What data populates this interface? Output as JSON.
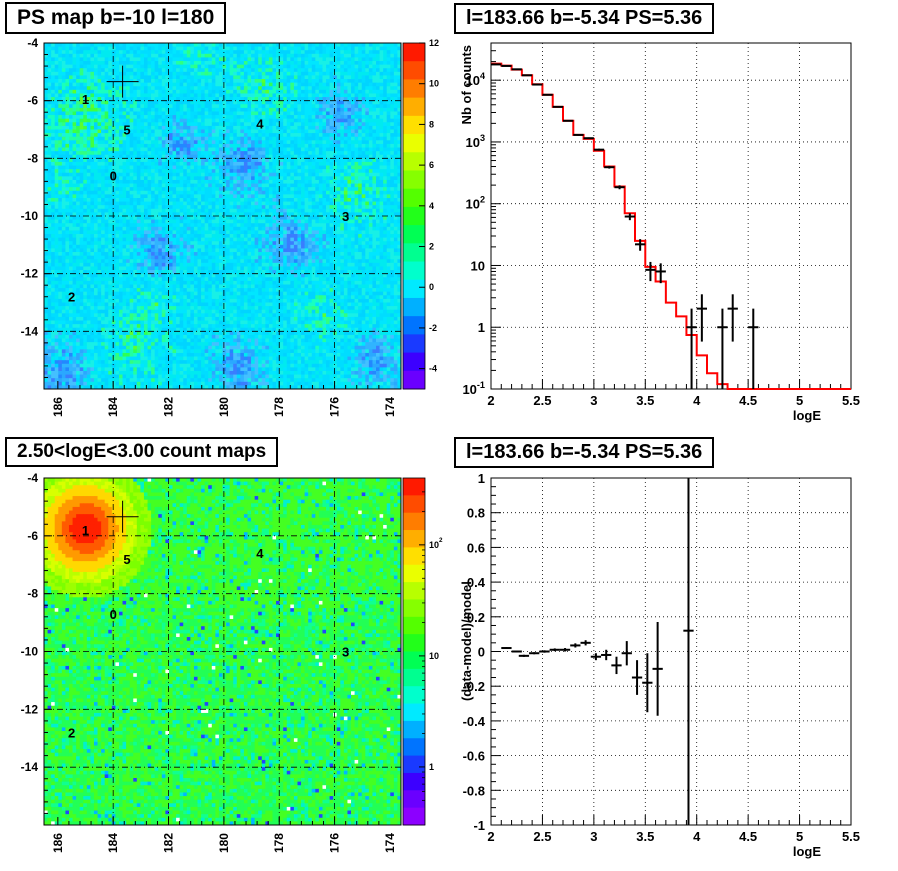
{
  "panels": {
    "tl_title": "PS map b=-10 l=180",
    "tr_title": "l=183.66 b=-5.34 PS=5.36",
    "bl_title": "2.50<logE<3.00 count maps",
    "br_title": "l=183.66 b=-5.34 PS=5.36"
  },
  "colors": {
    "data": "#000000",
    "model": "#ff0000",
    "grid": "#000000"
  },
  "chart_data": [
    {
      "type": "heatmap",
      "title": "PS map b=-10 l=180",
      "x_ticks": [
        "186",
        "184",
        "182",
        "180",
        "178",
        "176",
        "174"
      ],
      "y_ticks": [
        "-4",
        "-6",
        "-8",
        "-10",
        "-12",
        "-14"
      ],
      "xlim": [
        186.5,
        173.6
      ],
      "ylim": [
        -16,
        -4
      ],
      "colorbar_ticks": [
        "12",
        "10",
        "8",
        "6",
        "4",
        "2",
        "0",
        "-2",
        "-4"
      ],
      "zlim": [
        -5,
        12
      ],
      "sources": [
        {
          "label": "1",
          "l": 185.0,
          "b": -5.95
        },
        {
          "label": "5",
          "l": 183.5,
          "b": -7.0
        },
        {
          "label": "4",
          "l": 178.7,
          "b": -6.8
        },
        {
          "label": "0",
          "l": 184.0,
          "b": -8.6
        },
        {
          "label": "3",
          "l": 175.6,
          "b": -10.0
        },
        {
          "label": "2",
          "l": 185.5,
          "b": -12.8
        }
      ],
      "marker": {
        "l": 183.66,
        "b": -5.34
      },
      "grid": true
    },
    {
      "type": "line",
      "title": "l=183.66 b=-5.34 PS=5.36",
      "xlabel": "logE",
      "ylabel": "Nb of counts",
      "xlim": [
        2,
        5.5
      ],
      "ylim": [
        0.1,
        40000
      ],
      "yscale": "log",
      "x_ticks": [
        "2",
        "2.5",
        "3",
        "3.5",
        "4",
        "4.5",
        "5",
        "5.5"
      ],
      "y_ticks": [
        "10^-1",
        "1",
        "10",
        "10^2",
        "10^3",
        "10^4"
      ],
      "series": [
        {
          "values": [
            {
              "x": 2.05,
              "y": 18000
            },
            {
              "x": 2.15,
              "y": 17000
            },
            {
              "x": 2.25,
              "y": 15000
            },
            {
              "x": 2.35,
              "y": 12000
            },
            {
              "x": 2.45,
              "y": 8500
            },
            {
              "x": 2.55,
              "y": 5800
            },
            {
              "x": 2.65,
              "y": 3700
            },
            {
              "x": 2.75,
              "y": 2200
            },
            {
              "x": 2.85,
              "y": 1300
            },
            {
              "x": 2.95,
              "y": 1150
            },
            {
              "x": 3.05,
              "y": 750
            },
            {
              "x": 3.15,
              "y": 390
            },
            {
              "x": 3.25,
              "y": 185
            },
            {
              "x": 3.35,
              "y": 62
            },
            {
              "x": 3.45,
              "y": 22
            },
            {
              "x": 3.55,
              "y": 8.5
            },
            {
              "x": 3.65,
              "y": 8
            },
            {
              "x": 3.95,
              "y": 1
            },
            {
              "x": 4.05,
              "y": 2
            },
            {
              "x": 4.25,
              "y": 1
            },
            {
              "x": 4.35,
              "y": 2
            },
            {
              "x": 4.55,
              "y": 1
            }
          ]
        },
        {
          "steps": [
            {
              "x0": 2.0,
              "x1": 2.1,
              "y": 18500
            },
            {
              "x0": 2.1,
              "x1": 2.2,
              "y": 17200
            },
            {
              "x0": 2.2,
              "x1": 2.3,
              "y": 14800
            },
            {
              "x0": 2.3,
              "x1": 2.4,
              "y": 12000
            },
            {
              "x0": 2.4,
              "x1": 2.5,
              "y": 8600
            },
            {
              "x0": 2.5,
              "x1": 2.6,
              "y": 5800
            },
            {
              "x0": 2.6,
              "x1": 2.7,
              "y": 3700
            },
            {
              "x0": 2.7,
              "x1": 2.8,
              "y": 2200
            },
            {
              "x0": 2.8,
              "x1": 2.9,
              "y": 1300
            },
            {
              "x0": 2.9,
              "x1": 3.0,
              "y": 1120
            },
            {
              "x0": 3.0,
              "x1": 3.1,
              "y": 720
            },
            {
              "x0": 3.1,
              "x1": 3.2,
              "y": 400
            },
            {
              "x0": 3.2,
              "x1": 3.3,
              "y": 190
            },
            {
              "x0": 3.3,
              "x1": 3.4,
              "y": 70
            },
            {
              "x0": 3.4,
              "x1": 3.5,
              "y": 25
            },
            {
              "x0": 3.5,
              "x1": 3.6,
              "y": 9.5
            },
            {
              "x0": 3.6,
              "x1": 3.7,
              "y": 5.5
            },
            {
              "x0": 3.7,
              "x1": 3.8,
              "y": 2.5
            },
            {
              "x0": 3.8,
              "x1": 3.9,
              "y": 1.5
            },
            {
              "x0": 3.9,
              "x1": 4.0,
              "y": 0.75
            },
            {
              "x0": 4.0,
              "x1": 4.1,
              "y": 0.35
            },
            {
              "x0": 4.1,
              "x1": 4.2,
              "y": 0.18
            },
            {
              "x0": 4.2,
              "x1": 4.3,
              "y": 0.12
            },
            {
              "x0": 4.3,
              "x1": 5.5,
              "y": 0.1
            }
          ]
        }
      ],
      "grid": true
    },
    {
      "type": "heatmap",
      "title": "2.50<logE<3.00 count maps",
      "x_ticks": [
        "186",
        "184",
        "182",
        "180",
        "178",
        "176",
        "174"
      ],
      "y_ticks": [
        "-4",
        "-6",
        "-8",
        "-10",
        "-12",
        "-14"
      ],
      "xlim": [
        186.5,
        173.6
      ],
      "ylim": [
        -16,
        -4
      ],
      "colorbar_ticks": [
        "10^2",
        "10",
        "1"
      ],
      "sources": [
        {
          "label": "1",
          "l": 185.0,
          "b": -5.8
        },
        {
          "label": "5",
          "l": 183.5,
          "b": -6.8
        },
        {
          "label": "4",
          "l": 178.7,
          "b": -6.6
        },
        {
          "label": "0",
          "l": 184.0,
          "b": -8.7
        },
        {
          "label": "3",
          "l": 175.6,
          "b": -10.0
        },
        {
          "label": "2",
          "l": 185.5,
          "b": -12.8
        }
      ],
      "marker": {
        "l": 183.66,
        "b": -5.34
      },
      "grid": true
    },
    {
      "type": "scatter",
      "title": "l=183.66 b=-5.34 PS=5.36",
      "xlabel": "logE",
      "ylabel": "(data-model)/model",
      "xlim": [
        2,
        5.5
      ],
      "ylim": [
        -1,
        1
      ],
      "x_ticks": [
        "2",
        "2.5",
        "3",
        "3.5",
        "4",
        "4.5",
        "5",
        "5.5"
      ],
      "y_ticks": [
        "-1",
        "-0.8",
        "-0.6",
        "-0.4",
        "-0.2",
        "0",
        "0.2",
        "0.4",
        "0.6",
        "0.8",
        "1"
      ],
      "series": [
        {
          "values": [
            {
              "x": 2.15,
              "y": 0.02,
              "err": 0.005
            },
            {
              "x": 2.25,
              "y": 0.0,
              "err": 0.005
            },
            {
              "x": 2.32,
              "y": -0.025,
              "err": 0.006
            },
            {
              "x": 2.42,
              "y": -0.01,
              "err": 0.006
            },
            {
              "x": 2.52,
              "y": 0.0,
              "err": 0.007
            },
            {
              "x": 2.62,
              "y": 0.01,
              "err": 0.008
            },
            {
              "x": 2.72,
              "y": 0.01,
              "err": 0.01
            },
            {
              "x": 2.82,
              "y": 0.035,
              "err": 0.012
            },
            {
              "x": 2.92,
              "y": 0.05,
              "err": 0.015
            },
            {
              "x": 3.02,
              "y": -0.03,
              "err": 0.02
            },
            {
              "x": 3.12,
              "y": -0.02,
              "err": 0.03
            },
            {
              "x": 3.22,
              "y": -0.08,
              "err": 0.05
            },
            {
              "x": 3.32,
              "y": -0.01,
              "err": 0.07
            },
            {
              "x": 3.42,
              "y": -0.15,
              "err": 0.1
            },
            {
              "x": 3.52,
              "y": -0.18,
              "err": 0.17
            },
            {
              "x": 3.62,
              "y": -0.1,
              "err": 0.27
            },
            {
              "x": 3.92,
              "y": 0.12,
              "err": 1.2
            }
          ]
        }
      ],
      "grid": true
    }
  ]
}
